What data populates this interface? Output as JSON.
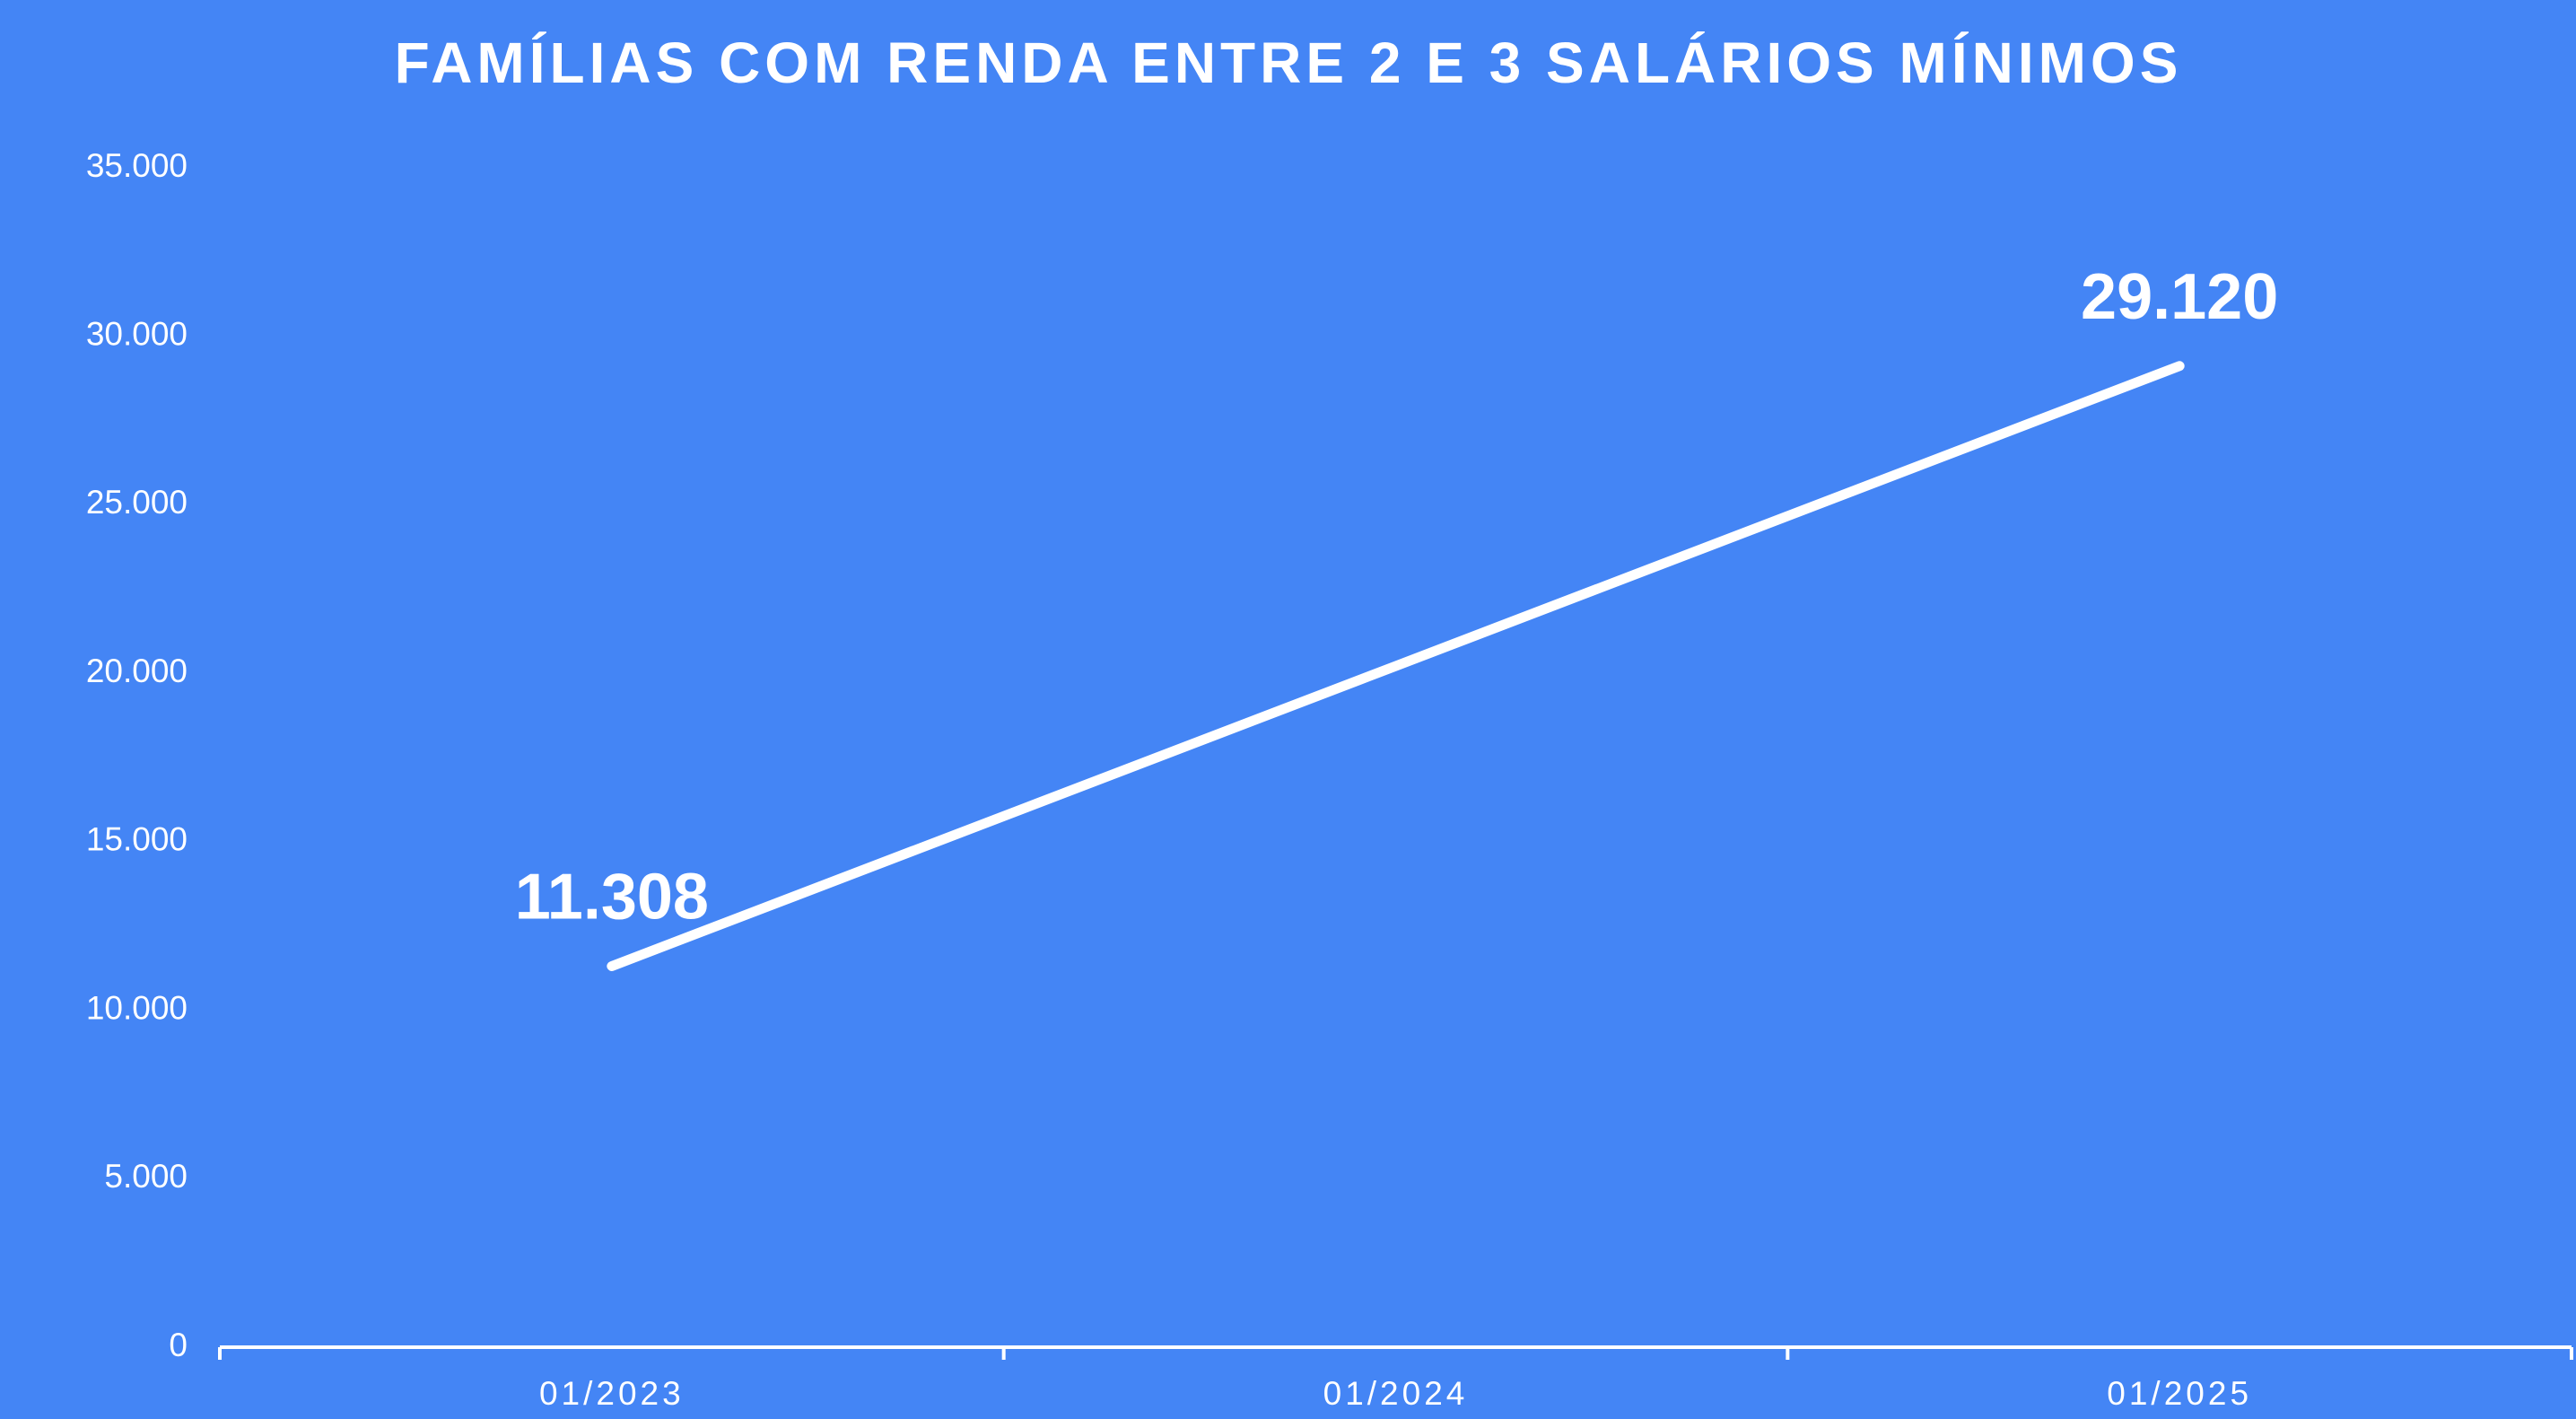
{
  "chart_data": {
    "type": "line",
    "title": "FAMÍLIAS COM RENDA ENTRE 2 E 3 SALÁRIOS MÍNIMOS",
    "categories": [
      "01/2023",
      "01/2024",
      "01/2025"
    ],
    "values": [
      11308,
      20214,
      29120
    ],
    "value_labels": [
      "11.308",
      null,
      "29.120"
    ],
    "color": "#ffffff",
    "ylim": [
      0,
      35000
    ],
    "yticks": [
      0,
      {
        "value": 5000,
        "label": "5.000"
      },
      {
        "value": 10000,
        "label": "10.000"
      },
      {
        "value": 15000,
        "label": "15.000"
      },
      {
        "value": 20000,
        "label": "20.000"
      },
      {
        "value": 25000,
        "label": "25.000"
      },
      {
        "value": 30000,
        "label": "30.000"
      },
      {
        "value": 35000,
        "label": "35.000"
      }
    ],
    "grid": false
  }
}
